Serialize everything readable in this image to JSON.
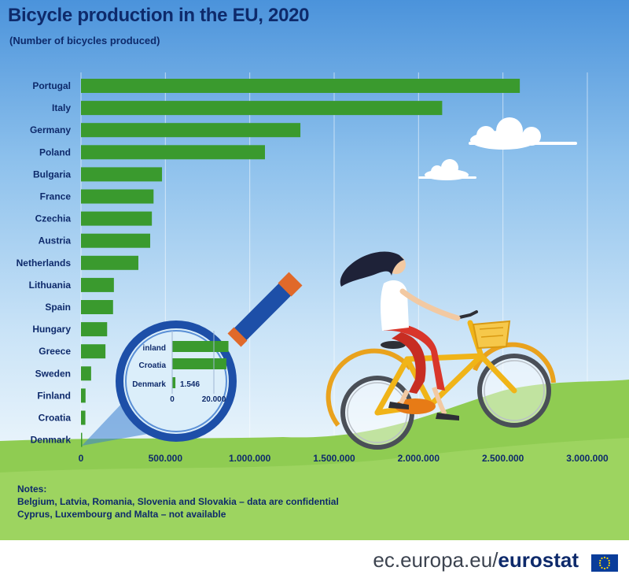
{
  "title": "Bicycle production in the EU, 2020",
  "subtitle": "(Number of bicycles produced)",
  "chart_data": {
    "type": "bar",
    "orientation": "horizontal",
    "title": "Bicycle production in the EU, 2020",
    "subtitle": "(Number of bicycles produced)",
    "categories": [
      "Portugal",
      "Italy",
      "Germany",
      "Poland",
      "Bulgaria",
      "France",
      "Czechia",
      "Austria",
      "Netherlands",
      "Lithuania",
      "Spain",
      "Hungary",
      "Greece",
      "Sweden",
      "Finland",
      "Croatia",
      "Denmark"
    ],
    "values": [
      2600000,
      2140000,
      1300000,
      1090000,
      480000,
      430000,
      420000,
      410000,
      340000,
      195000,
      190000,
      155000,
      145000,
      60000,
      27000,
      26000,
      1546
    ],
    "xlim": [
      0,
      3000000
    ],
    "xticks": [
      "0",
      "500.000",
      "1.000.000",
      "1.500.000",
      "2.000.000",
      "2.500.000",
      "3.000.000"
    ],
    "bar_color": "#3a9a2e",
    "grid": true,
    "inset": {
      "categories": [
        "Finland",
        "Croatia",
        "Denmark"
      ],
      "labels": [
        "inland",
        "Croatia",
        "Denmark"
      ],
      "values": [
        27000,
        26000,
        1546
      ],
      "value_label": "1.546",
      "xticks": [
        "0",
        "20.000"
      ]
    }
  },
  "notes": {
    "heading": "Notes:",
    "lines": [
      "Belgium, Latvia, Romania, Slovenia and Slovakia – data are confidential",
      "Cyprus, Luxembourg and Malta – not available"
    ]
  },
  "footer": {
    "domain": "ec.europa.eu/",
    "brand": "eurostat"
  },
  "colors": {
    "title": "#0e2a6b",
    "bar": "#3a9a2e",
    "hill": "#8fcc52",
    "magnifier_frame": "#1d4fa8"
  },
  "icons": [
    "magnifying-glass-icon",
    "cyclist-illustration",
    "cloud-icon",
    "eu-flag-icon"
  ]
}
